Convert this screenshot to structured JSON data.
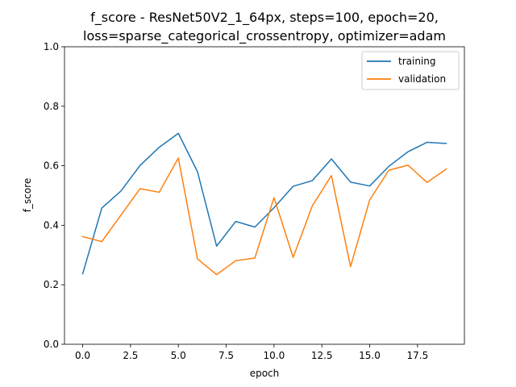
{
  "chart_data": {
    "type": "line",
    "title_lines": [
      "f_score - ResNet50V2_1_64px, steps=100, epoch=20,",
      "loss=sparse_categorical_crossentropy, optimizer=adam"
    ],
    "xlabel": "epoch",
    "ylabel": "f_score",
    "xlim": [
      -0.95,
      19.95
    ],
    "ylim": [
      0,
      1
    ],
    "xticks": [
      0,
      2.5,
      5,
      7.5,
      10,
      12.5,
      15,
      17.5
    ],
    "xtick_labels": [
      "0.0",
      "2.5",
      "5.0",
      "7.5",
      "10.0",
      "12.5",
      "15.0",
      "17.5"
    ],
    "yticks": [
      0,
      0.2,
      0.4,
      0.6,
      0.8,
      1.0
    ],
    "ytick_labels": [
      "0.0",
      "0.2",
      "0.4",
      "0.6",
      "0.8",
      "1.0"
    ],
    "grid": false,
    "legend_position": "top-right",
    "x": [
      0,
      1,
      2,
      3,
      4,
      5,
      6,
      7,
      8,
      9,
      10,
      11,
      12,
      13,
      14,
      15,
      16,
      17,
      18,
      19
    ],
    "series": [
      {
        "name": "training",
        "color": "#1f77b4",
        "values": [
          0.237,
          0.458,
          0.515,
          0.601,
          0.662,
          0.709,
          0.58,
          0.33,
          0.413,
          0.394,
          0.459,
          0.531,
          0.55,
          0.623,
          0.545,
          0.532,
          0.598,
          0.647,
          0.679,
          0.675
        ]
      },
      {
        "name": "validation",
        "color": "#ff7f0e",
        "values": [
          0.362,
          0.345,
          0.434,
          0.523,
          0.511,
          0.626,
          0.287,
          0.234,
          0.281,
          0.29,
          0.493,
          0.292,
          0.465,
          0.567,
          0.261,
          0.485,
          0.585,
          0.602,
          0.544,
          0.589
        ]
      }
    ]
  }
}
